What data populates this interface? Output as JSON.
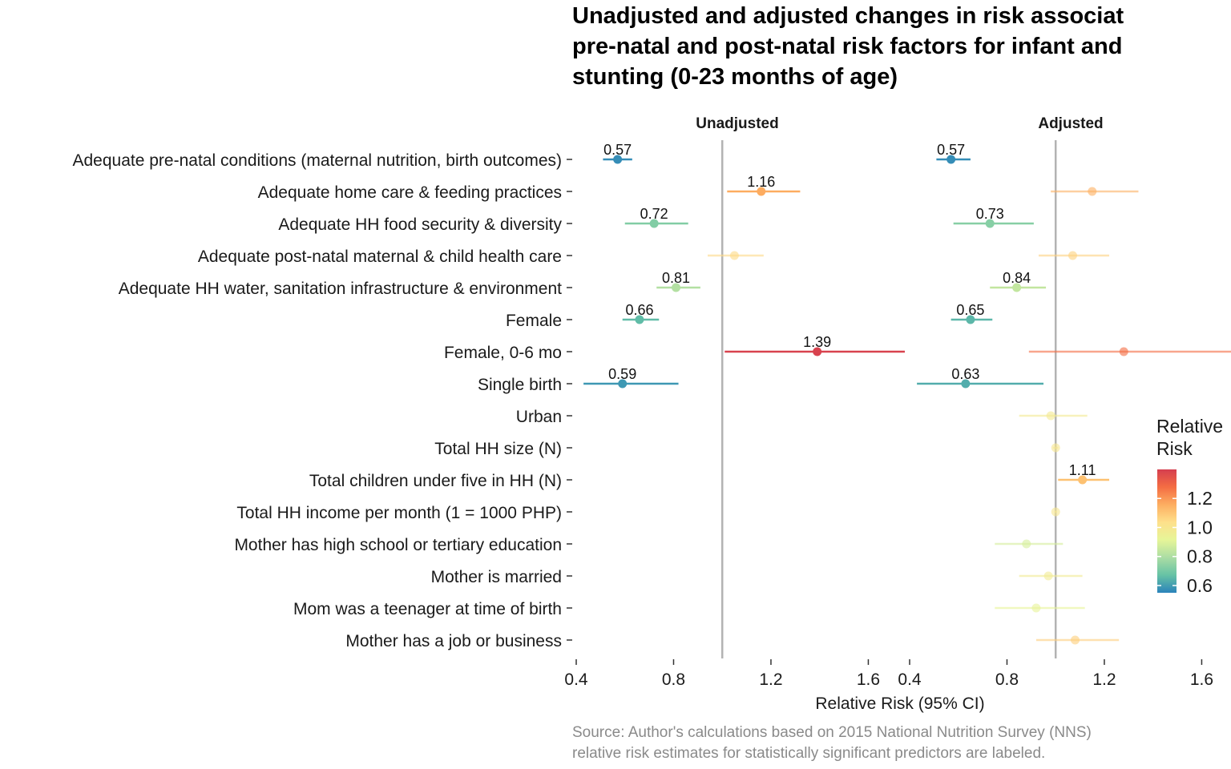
{
  "chart_data": {
    "type": "scatter",
    "title_lines": [
      "Unadjusted and adjusted changes in risk associat",
      "pre-natal and post-natal risk factors for infant and",
      "stunting (0-23 months of age)"
    ],
    "caption_lines": [
      "Source: Author's calculations based on 2015 National Nutrition Survey (NNS)",
      "relative risk estimates for statistically significant predictors are labeled."
    ],
    "xlabel": "Relative Risk (95% CI)",
    "xlim": [
      0.4,
      1.75
    ],
    "xticks": [
      0.4,
      0.8,
      1.2,
      1.6
    ],
    "xtick_labels": [
      "0.4",
      "0.8",
      "1.2",
      "1.6"
    ],
    "reference_line": 1.0,
    "legend": {
      "title_lines": [
        "Relative",
        "Risk"
      ],
      "position": "right",
      "range": [
        0.55,
        1.4
      ],
      "ticks": [
        0.6,
        0.8,
        1.0,
        1.2
      ],
      "tick_labels": [
        "0.6",
        "0.8",
        "1.0",
        "1.2"
      ]
    },
    "categories": [
      "Adequate pre-natal conditions (maternal nutrition, birth outcomes)",
      "Adequate home care & feeding practices",
      "Adequate HH food security & diversity",
      "Adequate post-natal maternal & child health care",
      "Adequate HH water, sanitation infrastructure & environment",
      "Female",
      "Female, 0-6 mo",
      "Single birth",
      "Urban",
      "Total HH size (N)",
      "Total children under five in HH (N)",
      "Total HH income per month (1 = 1000 PHP)",
      "Mother has high school or tertiary education",
      "Mother is married",
      "Mom was a teenager at time of birth",
      "Mother has a job or business"
    ],
    "panels": [
      {
        "name": "Unadjusted",
        "points": [
          {
            "row": 0,
            "est": 0.57,
            "lo": 0.51,
            "hi": 0.63,
            "label": "0.57"
          },
          {
            "row": 1,
            "est": 1.16,
            "lo": 1.02,
            "hi": 1.32,
            "label": "1.16"
          },
          {
            "row": 2,
            "est": 0.72,
            "lo": 0.6,
            "hi": 0.86,
            "label": "0.72"
          },
          {
            "row": 3,
            "est": 1.05,
            "lo": 0.94,
            "hi": 1.17,
            "label": ""
          },
          {
            "row": 4,
            "est": 0.81,
            "lo": 0.73,
            "hi": 0.91,
            "label": "0.81"
          },
          {
            "row": 5,
            "est": 0.66,
            "lo": 0.59,
            "hi": 0.74,
            "label": "0.66"
          },
          {
            "row": 6,
            "est": 1.39,
            "lo": 1.01,
            "hi": 1.9,
            "label": "1.39"
          },
          {
            "row": 7,
            "est": 0.59,
            "lo": 0.43,
            "hi": 0.82,
            "label": "0.59"
          }
        ]
      },
      {
        "name": "Adjusted",
        "points": [
          {
            "row": 0,
            "est": 0.57,
            "lo": 0.51,
            "hi": 0.65,
            "label": "0.57"
          },
          {
            "row": 1,
            "est": 1.15,
            "lo": 0.98,
            "hi": 1.34,
            "label": ""
          },
          {
            "row": 2,
            "est": 0.73,
            "lo": 0.58,
            "hi": 0.91,
            "label": "0.73"
          },
          {
            "row": 3,
            "est": 1.07,
            "lo": 0.93,
            "hi": 1.22,
            "label": ""
          },
          {
            "row": 4,
            "est": 0.84,
            "lo": 0.73,
            "hi": 0.96,
            "label": "0.84"
          },
          {
            "row": 5,
            "est": 0.65,
            "lo": 0.57,
            "hi": 0.74,
            "label": "0.65"
          },
          {
            "row": 6,
            "est": 1.28,
            "lo": 0.89,
            "hi": 1.84,
            "label": ""
          },
          {
            "row": 7,
            "est": 0.63,
            "lo": 0.43,
            "hi": 0.95,
            "label": "0.63"
          },
          {
            "row": 8,
            "est": 0.98,
            "lo": 0.85,
            "hi": 1.13,
            "label": ""
          },
          {
            "row": 9,
            "est": 1.0,
            "lo": 0.99,
            "hi": 1.01,
            "label": ""
          },
          {
            "row": 10,
            "est": 1.11,
            "lo": 1.01,
            "hi": 1.22,
            "label": "1.11"
          },
          {
            "row": 11,
            "est": 1.0,
            "lo": 0.995,
            "hi": 1.005,
            "label": ""
          },
          {
            "row": 12,
            "est": 0.88,
            "lo": 0.75,
            "hi": 1.03,
            "label": ""
          },
          {
            "row": 13,
            "est": 0.97,
            "lo": 0.85,
            "hi": 1.11,
            "label": ""
          },
          {
            "row": 14,
            "est": 0.92,
            "lo": 0.75,
            "hi": 1.12,
            "label": ""
          },
          {
            "row": 15,
            "est": 1.08,
            "lo": 0.92,
            "hi": 1.26,
            "label": ""
          }
        ]
      }
    ],
    "colors": {
      "reference_line": "#b3b3b3",
      "scale": [
        "#2b83ba",
        "#66c2a5",
        "#abdda4",
        "#e6f598",
        "#fee08b",
        "#fdae61",
        "#f46d43",
        "#d53e4f"
      ]
    }
  }
}
